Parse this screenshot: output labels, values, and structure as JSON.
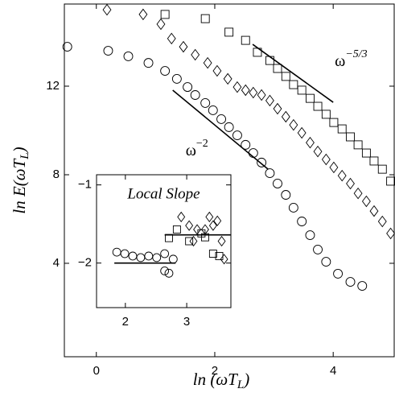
{
  "chart_data": [
    {
      "type": "scatter",
      "xlabel": {
        "main": "ln (ωT",
        "sub": "L",
        "end": ")"
      },
      "ylabel": {
        "main": "ln E(ωT",
        "sub": "L",
        "end": ")"
      },
      "xlim": [
        -0.54,
        5.03
      ],
      "ylim": [
        -0.22,
        15.71
      ],
      "xticks": [
        0,
        2,
        4
      ],
      "yticks": [
        4,
        8,
        12
      ],
      "series": [
        {
          "marker": "circle",
          "color": "#000",
          "x": [
            -0.49,
            0.2,
            0.54,
            0.88,
            1.16,
            1.36,
            1.54,
            1.67,
            1.84,
            1.97,
            2.11,
            2.24,
            2.38,
            2.52,
            2.65,
            2.79,
            2.93,
            3.06,
            3.2,
            3.33,
            3.47,
            3.61,
            3.74,
            3.88,
            4.08,
            4.29,
            4.49
          ],
          "y": [
            13.78,
            13.6,
            13.35,
            13.05,
            12.69,
            12.33,
            11.96,
            11.6,
            11.24,
            10.91,
            10.51,
            10.15,
            9.78,
            9.35,
            8.98,
            8.55,
            8.07,
            7.6,
            7.09,
            6.51,
            5.89,
            5.27,
            4.62,
            4.07,
            3.53,
            3.16,
            2.98
          ]
        },
        {
          "marker": "diamond",
          "color": "#000",
          "x": [
            0.18,
            0.79,
            1.09,
            1.27,
            1.47,
            1.67,
            1.88,
            2.04,
            2.22,
            2.38,
            2.52,
            2.65,
            2.79,
            2.93,
            3.06,
            3.2,
            3.33,
            3.47,
            3.61,
            3.74,
            3.88,
            4.01,
            4.15,
            4.29,
            4.42,
            4.56,
            4.69,
            4.83,
            4.97
          ],
          "y": [
            15.45,
            15.24,
            14.8,
            14.15,
            13.78,
            13.42,
            13.05,
            12.69,
            12.33,
            11.96,
            11.82,
            11.71,
            11.6,
            11.35,
            10.98,
            10.62,
            10.25,
            9.89,
            9.45,
            9.05,
            8.69,
            8.33,
            7.96,
            7.6,
            7.16,
            6.8,
            6.36,
            5.89,
            5.35
          ]
        },
        {
          "marker": "square",
          "color": "#000",
          "x": [
            1.16,
            1.84,
            2.24,
            2.52,
            2.72,
            2.93,
            3.06,
            3.2,
            3.33,
            3.47,
            3.61,
            3.74,
            3.88,
            4.01,
            4.15,
            4.29,
            4.42,
            4.56,
            4.69,
            4.83,
            4.97
          ],
          "y": [
            15.24,
            15.05,
            14.44,
            14.07,
            13.53,
            13.16,
            12.8,
            12.44,
            12.07,
            11.82,
            11.45,
            11.09,
            10.73,
            10.36,
            10.07,
            9.71,
            9.35,
            8.98,
            8.62,
            8.25,
            7.71
          ]
        }
      ],
      "lines": [
        {
          "x": [
            2.64,
            4.0
          ],
          "y": [
            13.89,
            11.27
          ],
          "label": {
            "base": "ω",
            "sup": "−5/3"
          }
        },
        {
          "x": [
            1.29,
            2.9
          ],
          "y": [
            11.82,
            8.25
          ],
          "label": {
            "base": "ω",
            "sup": "−2"
          }
        }
      ]
    },
    {
      "type": "scatter",
      "title": "Local Slope",
      "xlim": [
        1.53,
        3.72
      ],
      "ylim": [
        -2.57,
        -0.87
      ],
      "xticks": [
        2,
        3
      ],
      "yticks": [
        {
          "value": -1,
          "label": "−1"
        },
        {
          "value": -2,
          "label": "−2"
        }
      ],
      "series": [
        {
          "marker": "circle",
          "color": "#000",
          "x": [
            1.86,
            1.99,
            2.12,
            2.25,
            2.38,
            2.51,
            2.64,
            2.78,
            2.64,
            2.71
          ],
          "y": [
            -1.86,
            -1.88,
            -1.91,
            -1.93,
            -1.91,
            -1.93,
            -1.88,
            -1.95,
            -2.1,
            -2.13
          ]
        },
        {
          "marker": "diamond",
          "color": "#000",
          "x": [
            2.91,
            3.04,
            3.11,
            3.17,
            3.3,
            3.37,
            3.43,
            3.5,
            3.57,
            3.61
          ],
          "y": [
            -1.41,
            -1.52,
            -1.72,
            -1.57,
            -1.57,
            -1.41,
            -1.52,
            -1.46,
            -1.72,
            -1.95
          ]
        },
        {
          "marker": "square",
          "color": "#000",
          "x": [
            2.71,
            2.84,
            3.04,
            3.24,
            3.3,
            3.43,
            3.53
          ],
          "y": [
            -1.68,
            -1.57,
            -1.72,
            -1.62,
            -1.67,
            -1.88,
            -1.91
          ]
        }
      ],
      "lines": [
        {
          "x": [
            1.82,
            2.82
          ],
          "y": [
            -2.0,
            -2.0
          ]
        },
        {
          "x": [
            2.64,
            3.72
          ],
          "y": [
            -1.64,
            -1.64
          ]
        }
      ]
    }
  ]
}
